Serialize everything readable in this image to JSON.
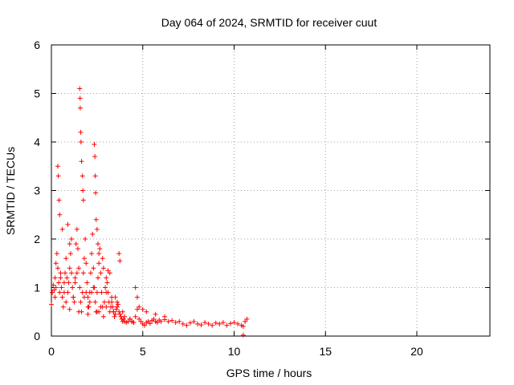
{
  "chart_data": {
    "type": "scatter",
    "title": "Day 064 of 2024, SRMTID for receiver cuut",
    "xlabel": "GPS time / hours",
    "ylabel": "SRMTID / TECUs",
    "xlim": [
      0,
      24
    ],
    "ylim": [
      0,
      6
    ],
    "x_ticks": [
      "0",
      "5",
      "10",
      "15",
      "20"
    ],
    "y_ticks": [
      "0",
      "1",
      "2",
      "3",
      "4",
      "5",
      "6"
    ],
    "grid": true,
    "marker": "+",
    "color": "#ff0000",
    "series": [
      {
        "name": "SRMTID",
        "x": [
          0.0,
          0.05,
          0.1,
          0.15,
          0.2,
          0.25,
          0.3,
          0.35,
          0.4,
          0.45,
          0.5,
          0.55,
          0.6,
          0.65,
          0.7,
          0.75,
          0.8,
          0.85,
          0.9,
          0.95,
          1.0,
          1.05,
          1.1,
          1.15,
          1.2,
          1.25,
          1.3,
          1.35,
          1.4,
          1.45,
          1.5,
          1.55,
          1.6,
          1.65,
          1.7,
          1.75,
          1.8,
          1.85,
          1.9,
          1.95,
          2.0,
          2.05,
          2.1,
          2.15,
          2.2,
          2.25,
          2.3,
          2.35,
          2.4,
          2.45,
          2.5,
          2.55,
          2.6,
          2.65,
          2.7,
          2.75,
          2.8,
          2.85,
          2.9,
          2.95,
          3.0,
          3.05,
          3.1,
          3.15,
          3.2,
          3.25,
          3.3,
          3.35,
          3.4,
          3.45,
          3.5,
          3.55,
          3.6,
          3.65,
          3.7,
          3.75,
          3.8,
          3.85,
          3.9,
          3.95,
          4.0,
          4.1,
          4.2,
          4.3,
          4.4,
          4.5,
          4.6,
          4.7,
          4.8,
          4.9,
          5.0,
          5.1,
          5.2,
          5.3,
          5.4,
          5.5,
          5.6,
          5.7,
          5.8,
          5.9,
          6.0,
          6.2,
          6.4,
          6.6,
          6.8,
          7.0,
          7.2,
          7.4,
          7.6,
          7.8,
          8.0,
          8.2,
          8.4,
          8.6,
          8.8,
          9.0,
          9.2,
          9.4,
          9.6,
          9.8,
          10.0,
          10.2,
          10.4,
          10.5,
          10.6,
          10.7,
          0.35,
          0.38,
          0.42,
          0.45,
          0.6,
          0.9,
          1.0,
          1.1,
          1.55,
          1.57,
          1.58,
          1.6,
          1.62,
          1.65,
          1.7,
          1.72,
          1.75,
          2.35,
          2.38,
          2.4,
          2.42,
          2.45,
          2.5,
          2.55,
          2.6,
          2.8,
          2.85,
          3.1,
          3.2,
          3.7,
          3.75,
          4.6,
          4.7,
          4.8,
          5.0,
          5.2,
          5.7,
          6.2,
          0.2,
          0.25,
          0.5,
          0.7,
          0.8,
          1.2,
          1.3,
          1.4,
          1.8,
          1.9,
          2.0,
          2.1,
          2.2,
          2.3,
          2.6,
          2.7,
          3.0,
          3.3,
          3.4,
          3.5,
          3.6,
          3.9,
          4.0,
          4.3,
          4.4,
          4.5,
          1.0,
          1.5,
          2.0,
          2.5,
          3.0,
          10.5
        ],
        "y": [
          0.65,
          0.9,
          1.05,
          0.95,
          1.2,
          1.5,
          1.7,
          1.4,
          1.1,
          0.9,
          1.3,
          1.0,
          0.8,
          0.6,
          1.1,
          1.3,
          1.6,
          1.2,
          0.9,
          1.1,
          1.4,
          1.7,
          1.3,
          1.0,
          0.8,
          0.7,
          1.2,
          1.9,
          2.2,
          1.8,
          1.4,
          1.0,
          0.7,
          0.5,
          0.9,
          1.3,
          1.6,
          2.0,
          1.5,
          1.1,
          0.8,
          0.6,
          0.9,
          1.3,
          1.7,
          2.1,
          1.4,
          1.0,
          0.7,
          0.5,
          0.9,
          1.2,
          1.5,
          1.8,
          1.3,
          0.9,
          0.6,
          0.4,
          0.7,
          1.0,
          1.2,
          1.1,
          0.9,
          0.7,
          0.5,
          0.6,
          0.8,
          0.6,
          0.5,
          0.4,
          0.45,
          0.55,
          0.7,
          0.65,
          0.5,
          0.45,
          0.4,
          0.35,
          0.3,
          0.35,
          0.3,
          0.28,
          0.3,
          0.35,
          0.3,
          0.28,
          0.4,
          0.55,
          0.35,
          0.3,
          0.25,
          0.22,
          0.28,
          0.3,
          0.26,
          0.32,
          0.35,
          0.3,
          0.28,
          0.33,
          0.3,
          0.34,
          0.3,
          0.32,
          0.28,
          0.3,
          0.25,
          0.22,
          0.27,
          0.3,
          0.25,
          0.23,
          0.28,
          0.25,
          0.22,
          0.27,
          0.25,
          0.28,
          0.22,
          0.26,
          0.28,
          0.25,
          0.22,
          0.2,
          0.3,
          0.35,
          3.5,
          3.3,
          2.8,
          2.5,
          2.2,
          2.3,
          1.9,
          2.0,
          5.1,
          4.9,
          4.7,
          4.2,
          4.0,
          3.6,
          3.3,
          3.0,
          2.8,
          3.95,
          3.7,
          3.3,
          2.95,
          2.4,
          2.2,
          1.9,
          1.7,
          1.6,
          1.4,
          1.35,
          1.3,
          1.7,
          1.55,
          1.0,
          0.8,
          0.6,
          0.55,
          0.5,
          0.45,
          0.4,
          0.8,
          1.0,
          1.2,
          0.9,
          0.7,
          0.8,
          1.1,
          1.3,
          0.8,
          0.9,
          0.6,
          0.7,
          0.9,
          1.0,
          0.5,
          0.6,
          0.9,
          0.7,
          0.5,
          0.8,
          0.6,
          0.5,
          0.4,
          0.35,
          0.3,
          0.28,
          0.55,
          0.5,
          0.45,
          0.5,
          0.6,
          0.02
        ]
      }
    ]
  }
}
